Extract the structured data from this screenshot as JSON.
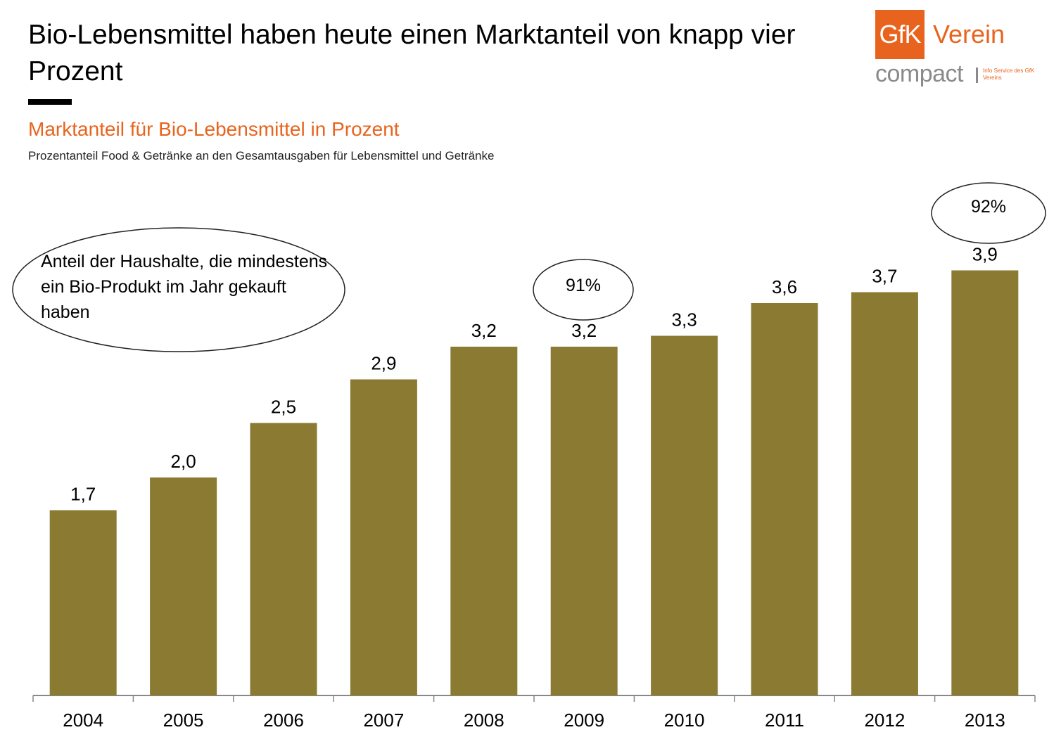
{
  "headline": "Bio-Lebensmittel haben heute einen Marktanteil von knapp vier Prozent",
  "logo": {
    "box_text": "GfK",
    "word": "Verein",
    "compact": "compact",
    "info": "Info Service des GfK Vereins"
  },
  "colors": {
    "bar": "#8a7a32",
    "accent": "#e8641e"
  },
  "chart_data": {
    "type": "bar",
    "title": "Marktanteil für Bio-Lebensmittel in Prozent",
    "subtitle": "Prozentanteil Food & Getränke an den Gesamtausgaben für Lebensmittel und Getränke",
    "categories": [
      "2004",
      "2005",
      "2006",
      "2007",
      "2008",
      "2009",
      "2010",
      "2011",
      "2012",
      "2013"
    ],
    "values": [
      1.7,
      2.0,
      2.5,
      2.9,
      3.2,
      3.2,
      3.3,
      3.6,
      3.7,
      3.9
    ],
    "value_labels": [
      "1,7",
      "2,0",
      "2,5",
      "2,9",
      "3,2",
      "3,2",
      "3,3",
      "3,6",
      "3,7",
      "3,9"
    ],
    "ylim": [
      0,
      4.6
    ],
    "annotations": {
      "households_label": "Anteil der Haushalte, die mindestens ein Bio-Produkt im Jahr gekauft haben",
      "households_2009": "91%",
      "households_2013": "92%"
    }
  }
}
